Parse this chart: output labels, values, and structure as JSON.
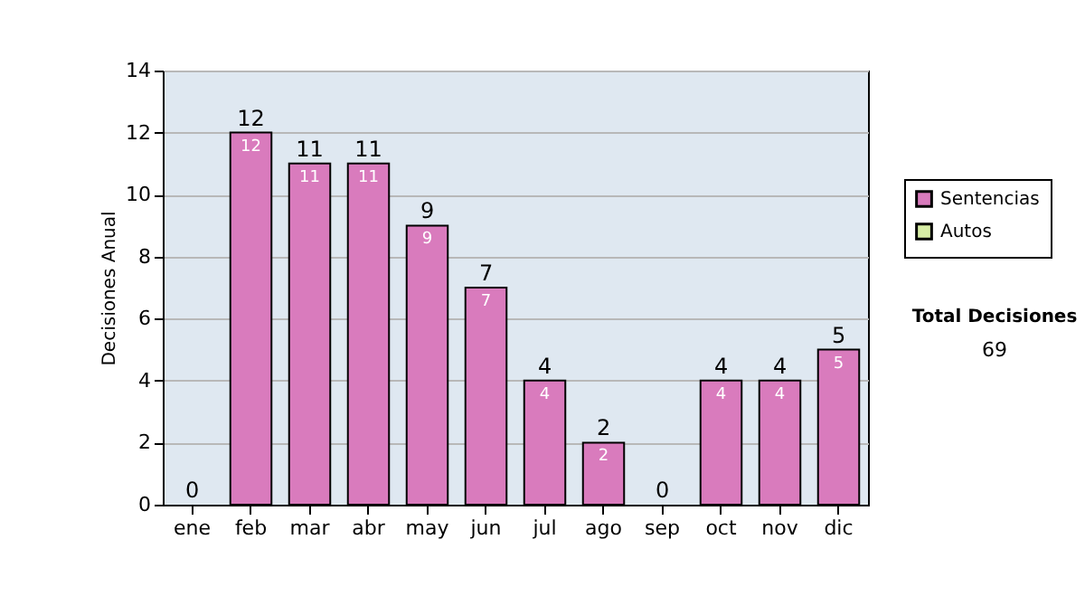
{
  "chart_data": {
    "type": "bar",
    "ylabel": "Decisiones Anual",
    "categories": [
      "ene",
      "feb",
      "mar",
      "abr",
      "may",
      "jun",
      "jul",
      "ago",
      "sep",
      "oct",
      "nov",
      "dic"
    ],
    "series": [
      {
        "name": "Sentencias",
        "color": "#d97bbd",
        "values": [
          0,
          12,
          11,
          11,
          9,
          7,
          4,
          2,
          0,
          4,
          4,
          5
        ],
        "value_labels": [
          null,
          "12",
          "11",
          "11",
          "9",
          "7",
          "4",
          "2",
          null,
          "4",
          "4",
          "5"
        ]
      },
      {
        "name": "Autos",
        "color": "#d8eea6",
        "values": [
          0,
          0,
          0,
          0,
          0,
          0,
          0,
          0,
          0,
          0,
          0,
          0
        ]
      }
    ],
    "stacked": true,
    "totals": [
      "0",
      "12",
      "11",
      "11",
      "9",
      "7",
      "4",
      "2",
      "0",
      "4",
      "4",
      "5"
    ],
    "ylim": [
      0,
      14
    ],
    "yticks": [
      0,
      2,
      4,
      6,
      8,
      10,
      12,
      14
    ],
    "grid": "y",
    "legend": "right",
    "annotations": [
      "Total Decisiones",
      "69"
    ]
  }
}
